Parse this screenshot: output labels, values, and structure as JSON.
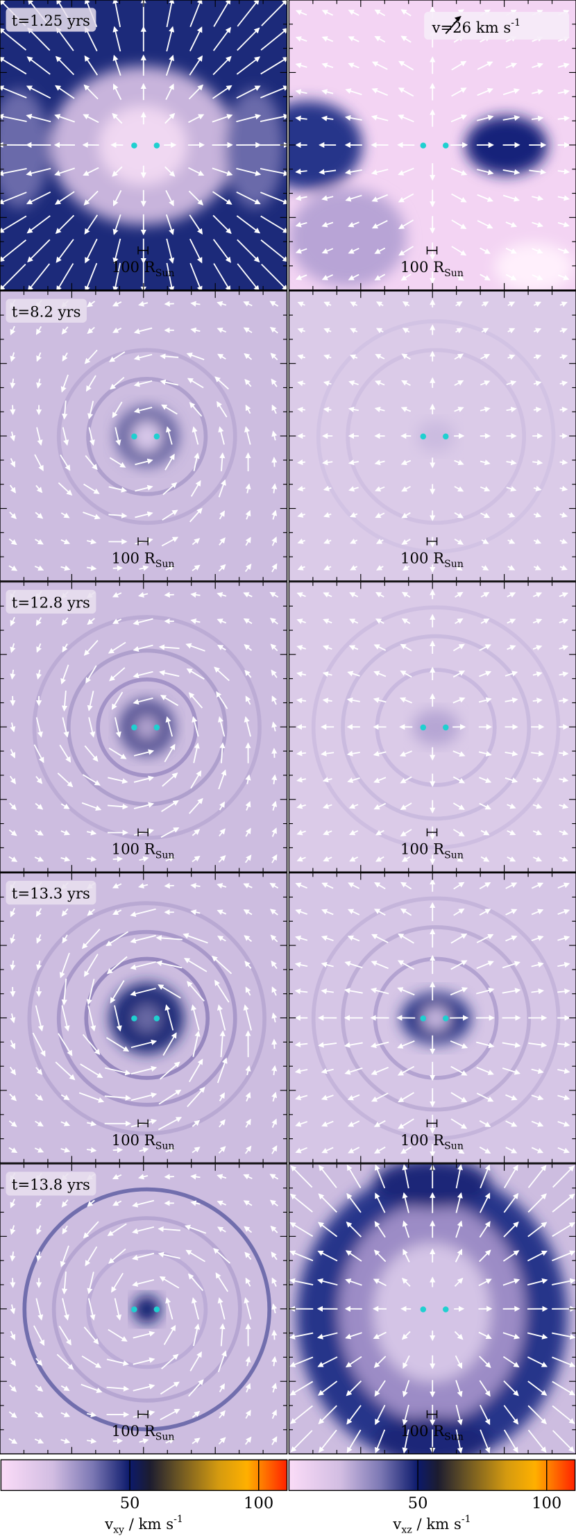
{
  "panels": [
    {
      "time": "t=1.25 yrs"
    },
    {
      "time": "t=8.2 yrs"
    },
    {
      "time": "t=12.8 yrs"
    },
    {
      "time": "t=13.3 yrs"
    },
    {
      "time": "t=13.8 yrs"
    }
  ],
  "scale_bar": {
    "text": "100 R",
    "sub": "Sun"
  },
  "velocity_key": {
    "symbol": "v",
    "text": "=26 km s",
    "exp": "-1"
  },
  "colorbars": [
    {
      "quantity": "v",
      "sub": "xy",
      "unit": " / km s",
      "exp": "-1",
      "xlim": [
        0,
        111
      ],
      "xticks": [
        50,
        100
      ]
    },
    {
      "quantity": "v",
      "sub": "xz",
      "unit": " / km s",
      "exp": "-1",
      "xlim": [
        0,
        111
      ],
      "xticks": [
        50,
        100
      ]
    }
  ]
}
